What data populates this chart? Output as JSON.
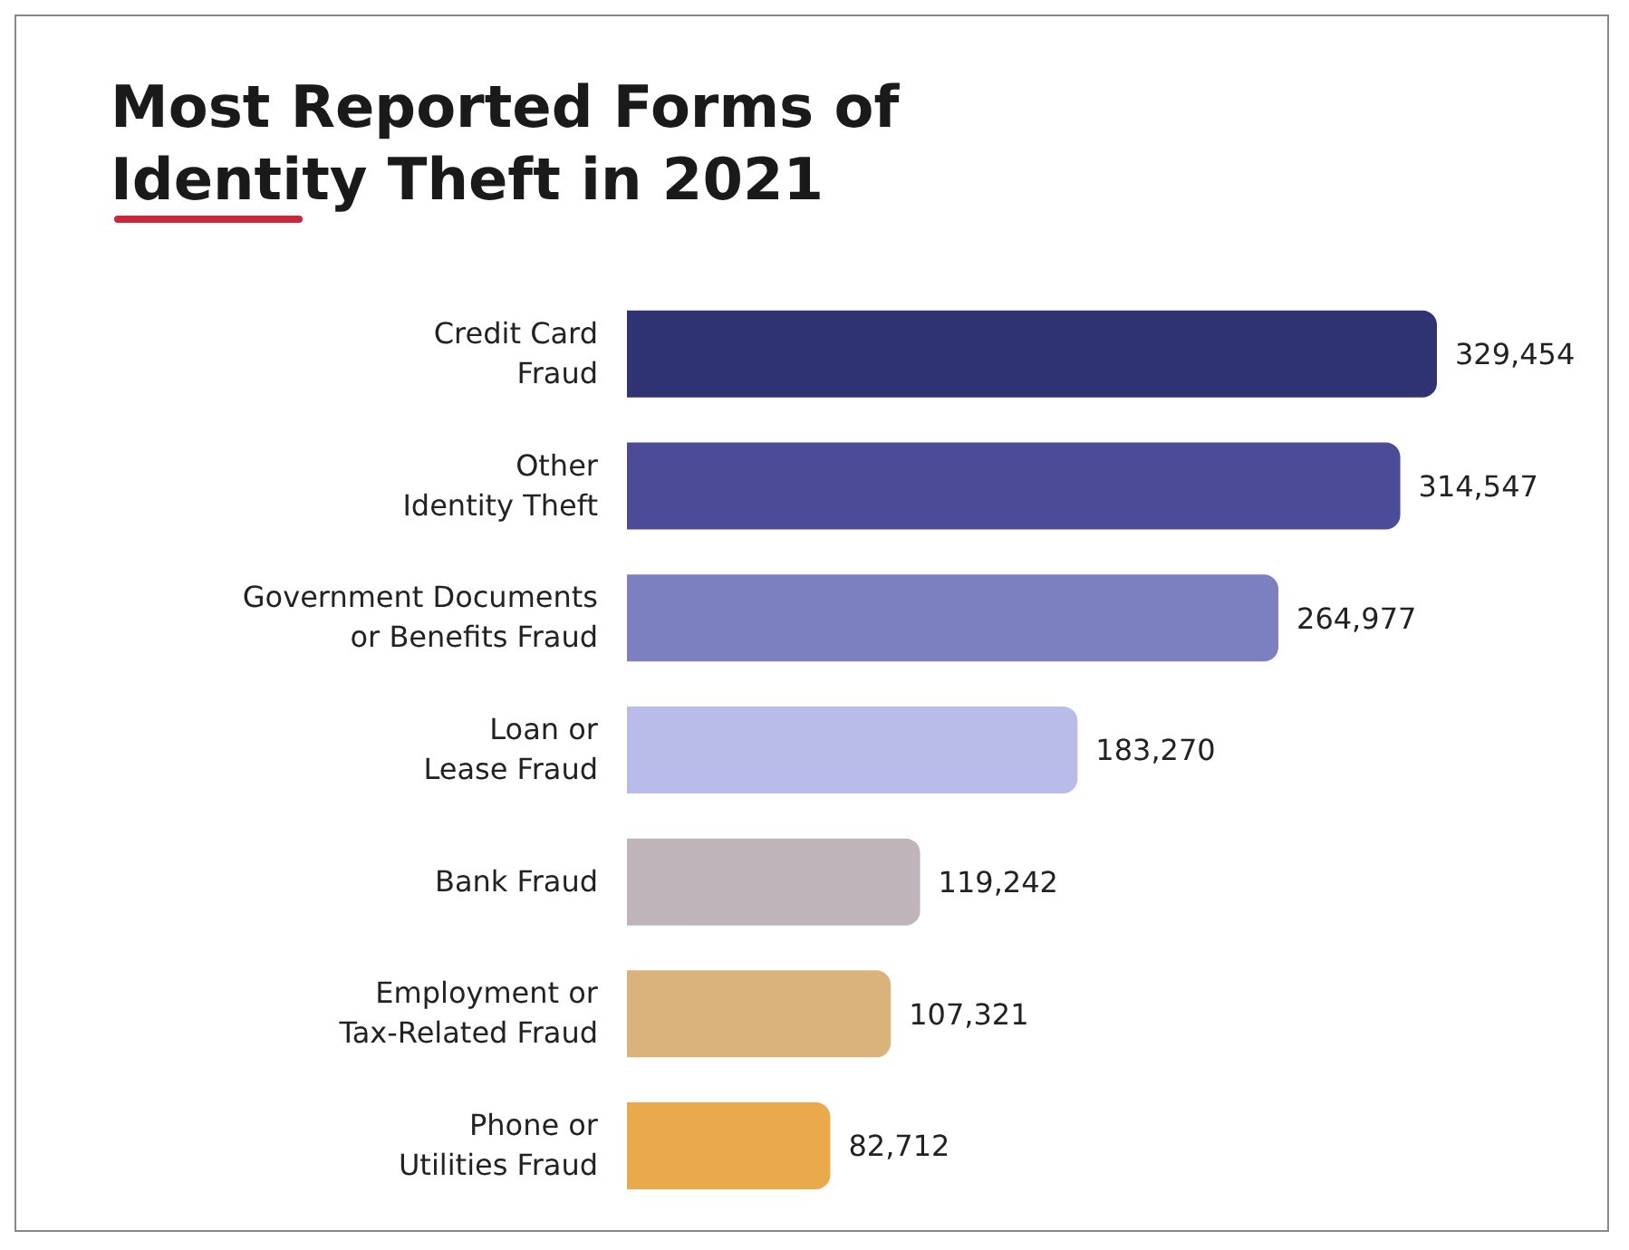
{
  "chart_data": {
    "type": "bar",
    "orientation": "horizontal",
    "title": "Most Reported Forms of\nIdentity Theft in 2021",
    "categories": [
      "Credit Card\nFraud",
      "Other\nIdentity Theft",
      "Government Documents\nor Benefits Fraud",
      "Loan or\nLease Fraud",
      "Bank Fraud",
      "Employment or\nTax-Related Fraud",
      "Phone or\nUtilities Fraud"
    ],
    "values": [
      329454,
      314547,
      264977,
      183270,
      119242,
      107321,
      82712
    ],
    "colors": [
      "#2f3372",
      "#4b4b97",
      "#7c80c0",
      "#b9bce8",
      "#bfb4b9",
      "#d9b27c",
      "#eaa94a"
    ],
    "value_labels": [
      "329,454",
      "314,547",
      "264,977",
      "183,270",
      "119,242",
      "107,321",
      "82,712"
    ],
    "grid": false,
    "legend": false
  }
}
